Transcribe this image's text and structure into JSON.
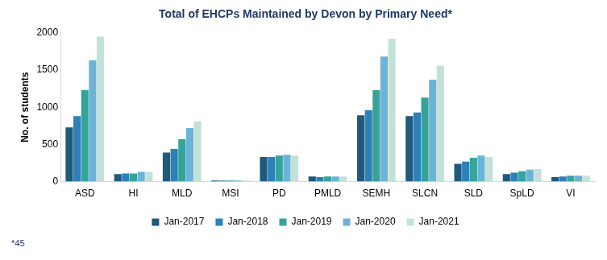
{
  "chart_data": {
    "type": "bar",
    "title": "Total of EHCPs Maintained by Devon by Primary Need*",
    "y_label": "No. of students",
    "categories": [
      "ASD",
      "HI",
      "MLD",
      "MSI",
      "PD",
      "PMLD",
      "SEMH",
      "SLCN",
      "SLD",
      "SpLD",
      "VI"
    ],
    "series": [
      {
        "name": "Jan-2017",
        "color": "#1f5a7a",
        "values": [
          730,
          100,
          390,
          15,
          330,
          70,
          890,
          880,
          240,
          100,
          60
        ]
      },
      {
        "name": "Jan-2018",
        "color": "#2f7fb8",
        "values": [
          880,
          110,
          440,
          15,
          330,
          60,
          960,
          930,
          270,
          120,
          70
        ]
      },
      {
        "name": "Jan-2019",
        "color": "#35a39a",
        "values": [
          1230,
          110,
          570,
          15,
          350,
          70,
          1230,
          1130,
          320,
          140,
          80
        ]
      },
      {
        "name": "Jan-2020",
        "color": "#6cb3d8",
        "values": [
          1630,
          130,
          720,
          15,
          360,
          70,
          1680,
          1370,
          350,
          160,
          80
        ]
      },
      {
        "name": "Jan-2021",
        "color": "#c2e2d7",
        "values": [
          1950,
          130,
          810,
          15,
          350,
          70,
          1920,
          1560,
          330,
          170,
          80
        ]
      }
    ],
    "ylim": [
      0,
      2000
    ],
    "yticks": [
      0,
      500,
      1000,
      1500,
      2000
    ],
    "grid": false,
    "legend": "bottom",
    "annotations": [
      "*45"
    ]
  }
}
